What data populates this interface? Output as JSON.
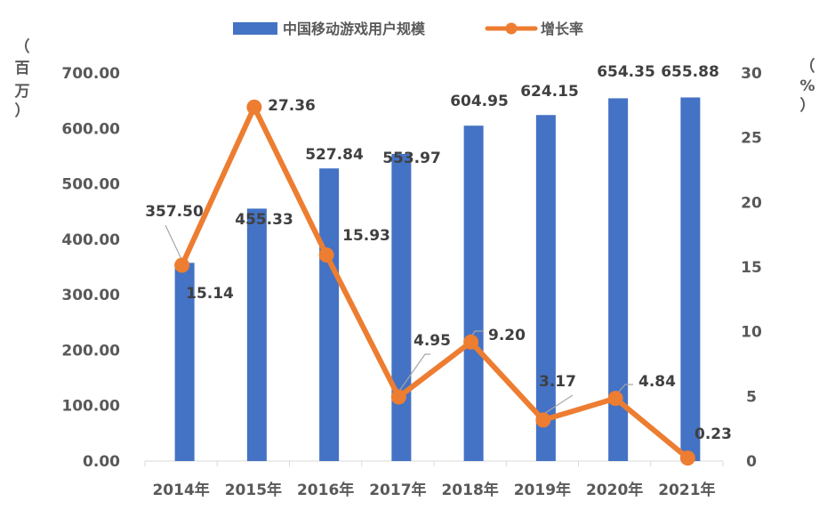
{
  "chart_data": {
    "type": "bar+line",
    "categories": [
      "2014年",
      "2015年",
      "2016年",
      "2017年",
      "2018年",
      "2019年",
      "2020年",
      "2021年"
    ],
    "series": [
      {
        "name": "中国移动游戏用户规模",
        "type": "bar",
        "axis": "left",
        "values": [
          357.5,
          455.33,
          527.84,
          553.97,
          604.95,
          624.15,
          654.35,
          655.88
        ],
        "labels": [
          "357.50",
          "455.33",
          "527.84",
          "553.97",
          "604.95",
          "624.15",
          "654.35",
          "655.88"
        ],
        "color": "#4472C4"
      },
      {
        "name": "增长率",
        "type": "line",
        "axis": "right",
        "values": [
          15.14,
          27.36,
          15.93,
          4.95,
          9.2,
          3.17,
          4.84,
          0.23
        ],
        "labels": [
          "15.14",
          "27.36",
          "15.93",
          "4.95",
          "9.20",
          "3.17",
          "4.84",
          "0.23"
        ],
        "color": "#ED7D31"
      }
    ],
    "y_left": {
      "unit_label": [
        "（",
        "百",
        "万",
        "）"
      ],
      "ylim": [
        0,
        700
      ],
      "ticks": [
        "0.00",
        "100.00",
        "200.00",
        "300.00",
        "400.00",
        "500.00",
        "600.00",
        "700.00"
      ]
    },
    "y_right": {
      "unit_label": [
        "（",
        "%",
        "）"
      ],
      "ylim": [
        0,
        30
      ],
      "ticks": [
        "0",
        "5",
        "10",
        "15",
        "20",
        "25",
        "30"
      ]
    },
    "legend_position": "top-center",
    "grid": false
  }
}
